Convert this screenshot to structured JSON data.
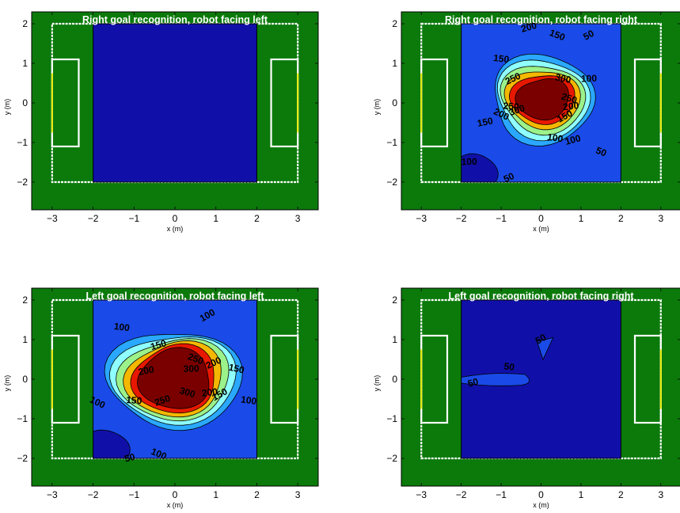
{
  "colors": {
    "pitch": "#0b7a0b",
    "field_line": "#ffffff",
    "goal_post": "#e8e800",
    "contour_levels": [
      "#1010a8",
      "#1a4be8",
      "#2aa8ff",
      "#8fffff",
      "#9cf28a",
      "#f5b800",
      "#e81800",
      "#7a0000"
    ]
  },
  "chart_data": [
    {
      "type": "contour",
      "title": "Right goal recognition, robot facing left",
      "xlabel": "x (m)",
      "ylabel": "y (m)",
      "xlim": [
        -3.5,
        3.5
      ],
      "ylim": [
        -2.7,
        2.3
      ],
      "xticks": [
        -3,
        -2,
        -1,
        0,
        1,
        2,
        3
      ],
      "yticks": [
        -2,
        -1,
        0,
        1,
        2
      ],
      "contour_region": {
        "x": [
          -2,
          2
        ],
        "y": [
          -2,
          2
        ]
      },
      "levels": [
        0,
        50,
        100,
        150,
        200,
        250,
        300,
        350
      ],
      "peak": null,
      "contour_labels": []
    },
    {
      "type": "contour",
      "title": "Right goal recognition, robot facing right",
      "xlabel": "x (m)",
      "ylabel": "y (m)",
      "xlim": [
        -3.5,
        3.5
      ],
      "ylim": [
        -2.7,
        2.3
      ],
      "xticks": [
        -3,
        -2,
        -1,
        0,
        1,
        2,
        3
      ],
      "yticks": [
        -2,
        -1,
        0,
        1,
        2
      ],
      "contour_region": {
        "x": [
          -2,
          2
        ],
        "y": [
          -2,
          2
        ]
      },
      "levels": [
        0,
        50,
        100,
        150,
        200,
        250,
        300,
        350
      ],
      "peak": {
        "x": 0.05,
        "y": 0.1,
        "value": 400,
        "rx": 1.25,
        "ry": 1.05,
        "offset": 0.35
      },
      "contour_labels": [
        {
          "text": "50",
          "x": 1.2,
          "y": 1.7
        },
        {
          "text": "150",
          "x": -1.0,
          "y": 1.1
        },
        {
          "text": "200",
          "x": -0.3,
          "y": 1.9
        },
        {
          "text": "150",
          "x": 0.4,
          "y": 1.7
        },
        {
          "text": "100",
          "x": 1.2,
          "y": 0.6
        },
        {
          "text": "250",
          "x": -0.7,
          "y": 0.6
        },
        {
          "text": "300",
          "x": 0.55,
          "y": 0.6
        },
        {
          "text": "150",
          "x": -1.4,
          "y": -0.5
        },
        {
          "text": "200",
          "x": -1.0,
          "y": -0.3
        },
        {
          "text": "250",
          "x": -0.75,
          "y": -0.1
        },
        {
          "text": "300",
          "x": -0.6,
          "y": -0.2
        },
        {
          "text": "250",
          "x": 0.7,
          "y": 0.1
        },
        {
          "text": "200",
          "x": 0.75,
          "y": -0.1
        },
        {
          "text": "150",
          "x": 0.6,
          "y": -0.35
        },
        {
          "text": "100",
          "x": 0.35,
          "y": -0.9
        },
        {
          "text": "100",
          "x": 0.8,
          "y": -0.95
        },
        {
          "text": "50",
          "x": 1.5,
          "y": -1.25
        },
        {
          "text": "100",
          "x": -1.8,
          "y": -1.5
        },
        {
          "text": "50",
          "x": -0.8,
          "y": -1.9
        }
      ]
    },
    {
      "type": "contour",
      "title": "Left goal recognition, robot facing left",
      "xlabel": "x (m)",
      "ylabel": "y (m)",
      "xlim": [
        -3.5,
        3.5
      ],
      "ylim": [
        -2.7,
        2.3
      ],
      "xticks": [
        -3,
        -2,
        -1,
        0,
        1,
        2,
        3
      ],
      "yticks": [
        -2,
        -1,
        0,
        1,
        2
      ],
      "contour_region": {
        "x": [
          -2,
          2
        ],
        "y": [
          -2,
          2
        ]
      },
      "levels": [
        0,
        50,
        100,
        150,
        200,
        250,
        300,
        350
      ],
      "peak": {
        "x": 0.0,
        "y": 0.0,
        "value": 400,
        "rx": 1.5,
        "ry": 1.2,
        "offset": 0.45
      },
      "contour_labels": [
        {
          "text": "100",
          "x": 0.8,
          "y": 1.6
        },
        {
          "text": "100",
          "x": -1.3,
          "y": 1.3
        },
        {
          "text": "150",
          "x": -0.4,
          "y": 0.85
        },
        {
          "text": "250",
          "x": 0.5,
          "y": 0.5
        },
        {
          "text": "300",
          "x": 0.4,
          "y": 0.25
        },
        {
          "text": "200",
          "x": 0.95,
          "y": 0.4
        },
        {
          "text": "150",
          "x": 1.5,
          "y": 0.25
        },
        {
          "text": "200",
          "x": -0.7,
          "y": 0.2
        },
        {
          "text": "100",
          "x": -1.9,
          "y": -0.6
        },
        {
          "text": "150",
          "x": -1.0,
          "y": -0.55
        },
        {
          "text": "250",
          "x": -0.3,
          "y": -0.55
        },
        {
          "text": "300",
          "x": 0.3,
          "y": -0.35
        },
        {
          "text": "200",
          "x": 0.85,
          "y": -0.35
        },
        {
          "text": "150",
          "x": 1.1,
          "y": -0.4
        },
        {
          "text": "100",
          "x": 1.8,
          "y": -0.55
        },
        {
          "text": "50",
          "x": -1.1,
          "y": -2.0
        },
        {
          "text": "100",
          "x": -0.4,
          "y": -1.9
        }
      ]
    },
    {
      "type": "contour",
      "title": "Left goal recognition, robot facing right",
      "xlabel": "x (m)",
      "ylabel": "y (m)",
      "xlim": [
        -3.5,
        3.5
      ],
      "ylim": [
        -2.7,
        2.3
      ],
      "xticks": [
        -3,
        -2,
        -1,
        0,
        1,
        2,
        3
      ],
      "yticks": [
        -2,
        -1,
        0,
        1,
        2
      ],
      "contour_region": {
        "x": [
          -2,
          2
        ],
        "y": [
          -2,
          2
        ]
      },
      "levels": [
        0,
        50,
        100,
        150,
        200,
        250,
        300,
        350
      ],
      "peak": null,
      "contour_labels": [
        {
          "text": "50",
          "x": 0.0,
          "y": 1.0
        },
        {
          "text": "50",
          "x": -0.8,
          "y": 0.3
        },
        {
          "text": "50",
          "x": -1.7,
          "y": -0.1
        }
      ]
    }
  ]
}
